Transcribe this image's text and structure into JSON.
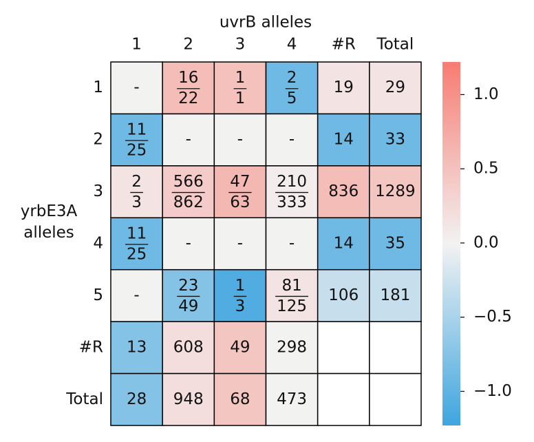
{
  "chart_data": {
    "type": "heatmap",
    "title": "uvrB alleles",
    "ylabel": "yrbE3A alleles",
    "columns": [
      "1",
      "2",
      "3",
      "4",
      "#R",
      "Total"
    ],
    "rows": [
      "1",
      "2",
      "3",
      "4",
      "5",
      "#R",
      "Total"
    ],
    "values": [
      [
        0,
        0.55,
        0.5,
        -0.9,
        0.15,
        0.15
      ],
      [
        -0.9,
        0,
        0,
        0,
        -0.9,
        -0.9
      ],
      [
        0.15,
        0.4,
        0.6,
        0.05,
        0.55,
        0.45
      ],
      [
        -0.9,
        0,
        0,
        0,
        -0.9,
        -0.9
      ],
      [
        0,
        -0.75,
        -1.1,
        0.15,
        -0.3,
        -0.3
      ],
      [
        -0.75,
        0.2,
        0.45,
        0,
        null,
        null
      ],
      [
        -0.75,
        0.2,
        0.45,
        0,
        null,
        null
      ]
    ],
    "cell_labels": [
      [
        "-",
        {
          "numerator": "16",
          "denominator": "22"
        },
        {
          "numerator": "1",
          "denominator": "1"
        },
        {
          "numerator": "2",
          "denominator": "5"
        },
        "19",
        "29"
      ],
      [
        {
          "numerator": "11",
          "denominator": "25"
        },
        "-",
        "-",
        "-",
        "14",
        "33"
      ],
      [
        {
          "numerator": "2",
          "denominator": "3"
        },
        {
          "numerator": "566",
          "denominator": "862"
        },
        {
          "numerator": "47",
          "denominator": "63"
        },
        {
          "numerator": "210",
          "denominator": "333"
        },
        "836",
        "1289"
      ],
      [
        {
          "numerator": "11",
          "denominator": "25"
        },
        "-",
        "-",
        "-",
        "14",
        "35"
      ],
      [
        "-",
        {
          "numerator": "23",
          "denominator": "49"
        },
        {
          "numerator": "1",
          "denominator": "3"
        },
        {
          "numerator": "81",
          "denominator": "125"
        },
        "106",
        "181"
      ],
      [
        "13",
        "608",
        "49",
        "298",
        null,
        null
      ],
      [
        "28",
        "948",
        "68",
        "473",
        null,
        null
      ]
    ],
    "clim": [
      -1.23,
      1.22
    ],
    "colormap": [
      "#3ea5df",
      "#f2f2f2",
      "#f77c72"
    ],
    "cticks": [
      {
        "value": 1.0,
        "label": "1.0"
      },
      {
        "value": 0.5,
        "label": "0.5"
      },
      {
        "value": 0.0,
        "label": "0.0"
      },
      {
        "value": -0.5,
        "label": "−0.5"
      },
      {
        "value": -1.0,
        "label": "−1.0"
      }
    ]
  }
}
